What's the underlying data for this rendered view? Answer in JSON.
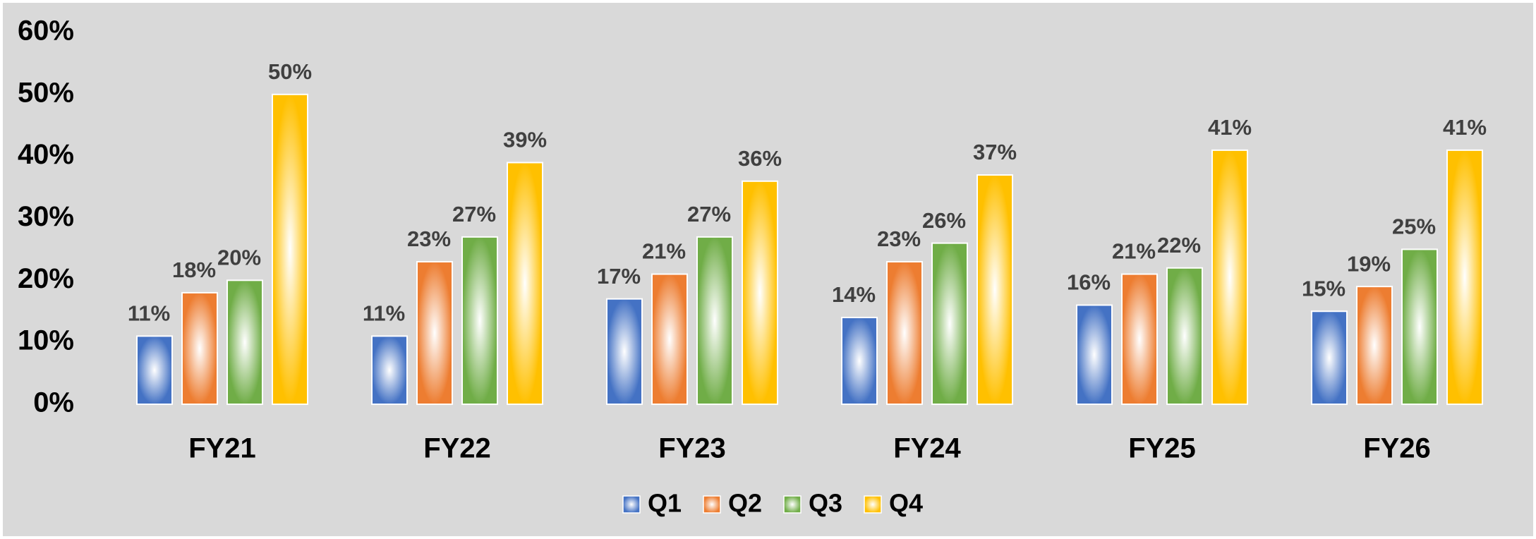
{
  "chart_data": {
    "type": "bar",
    "categories": [
      "FY21",
      "FY22",
      "FY23",
      "FY24",
      "FY25",
      "FY26"
    ],
    "series": [
      {
        "name": "Q1",
        "color": "#4472c4",
        "values": [
          11,
          11,
          17,
          14,
          16,
          15
        ],
        "value_labels": [
          "11%",
          "11%",
          "17%",
          "14%",
          "16%",
          "15%"
        ]
      },
      {
        "name": "Q2",
        "color": "#ed7d31",
        "values": [
          18,
          23,
          21,
          23,
          21,
          19
        ],
        "value_labels": [
          "18%",
          "23%",
          "21%",
          "23%",
          "21%",
          "19%"
        ]
      },
      {
        "name": "Q3",
        "color": "#70ad47",
        "values": [
          20,
          27,
          27,
          26,
          22,
          25
        ],
        "value_labels": [
          "20%",
          "27%",
          "27%",
          "26%",
          "22%",
          "25%"
        ]
      },
      {
        "name": "Q4",
        "color": "#ffc000",
        "values": [
          50,
          39,
          36,
          37,
          41,
          41
        ],
        "value_labels": [
          "50%",
          "39%",
          "36%",
          "37%",
          "41%",
          "41%"
        ]
      }
    ],
    "ylim": [
      0,
      60
    ],
    "yticks": [
      {
        "value": 0,
        "label": "0%"
      },
      {
        "value": 10,
        "label": "10%"
      },
      {
        "value": 20,
        "label": "20%"
      },
      {
        "value": 30,
        "label": "30%"
      },
      {
        "value": 40,
        "label": "40%"
      },
      {
        "value": 50,
        "label": "50%"
      },
      {
        "value": 60,
        "label": "60%"
      }
    ],
    "grid": false,
    "legend": "bottom"
  }
}
